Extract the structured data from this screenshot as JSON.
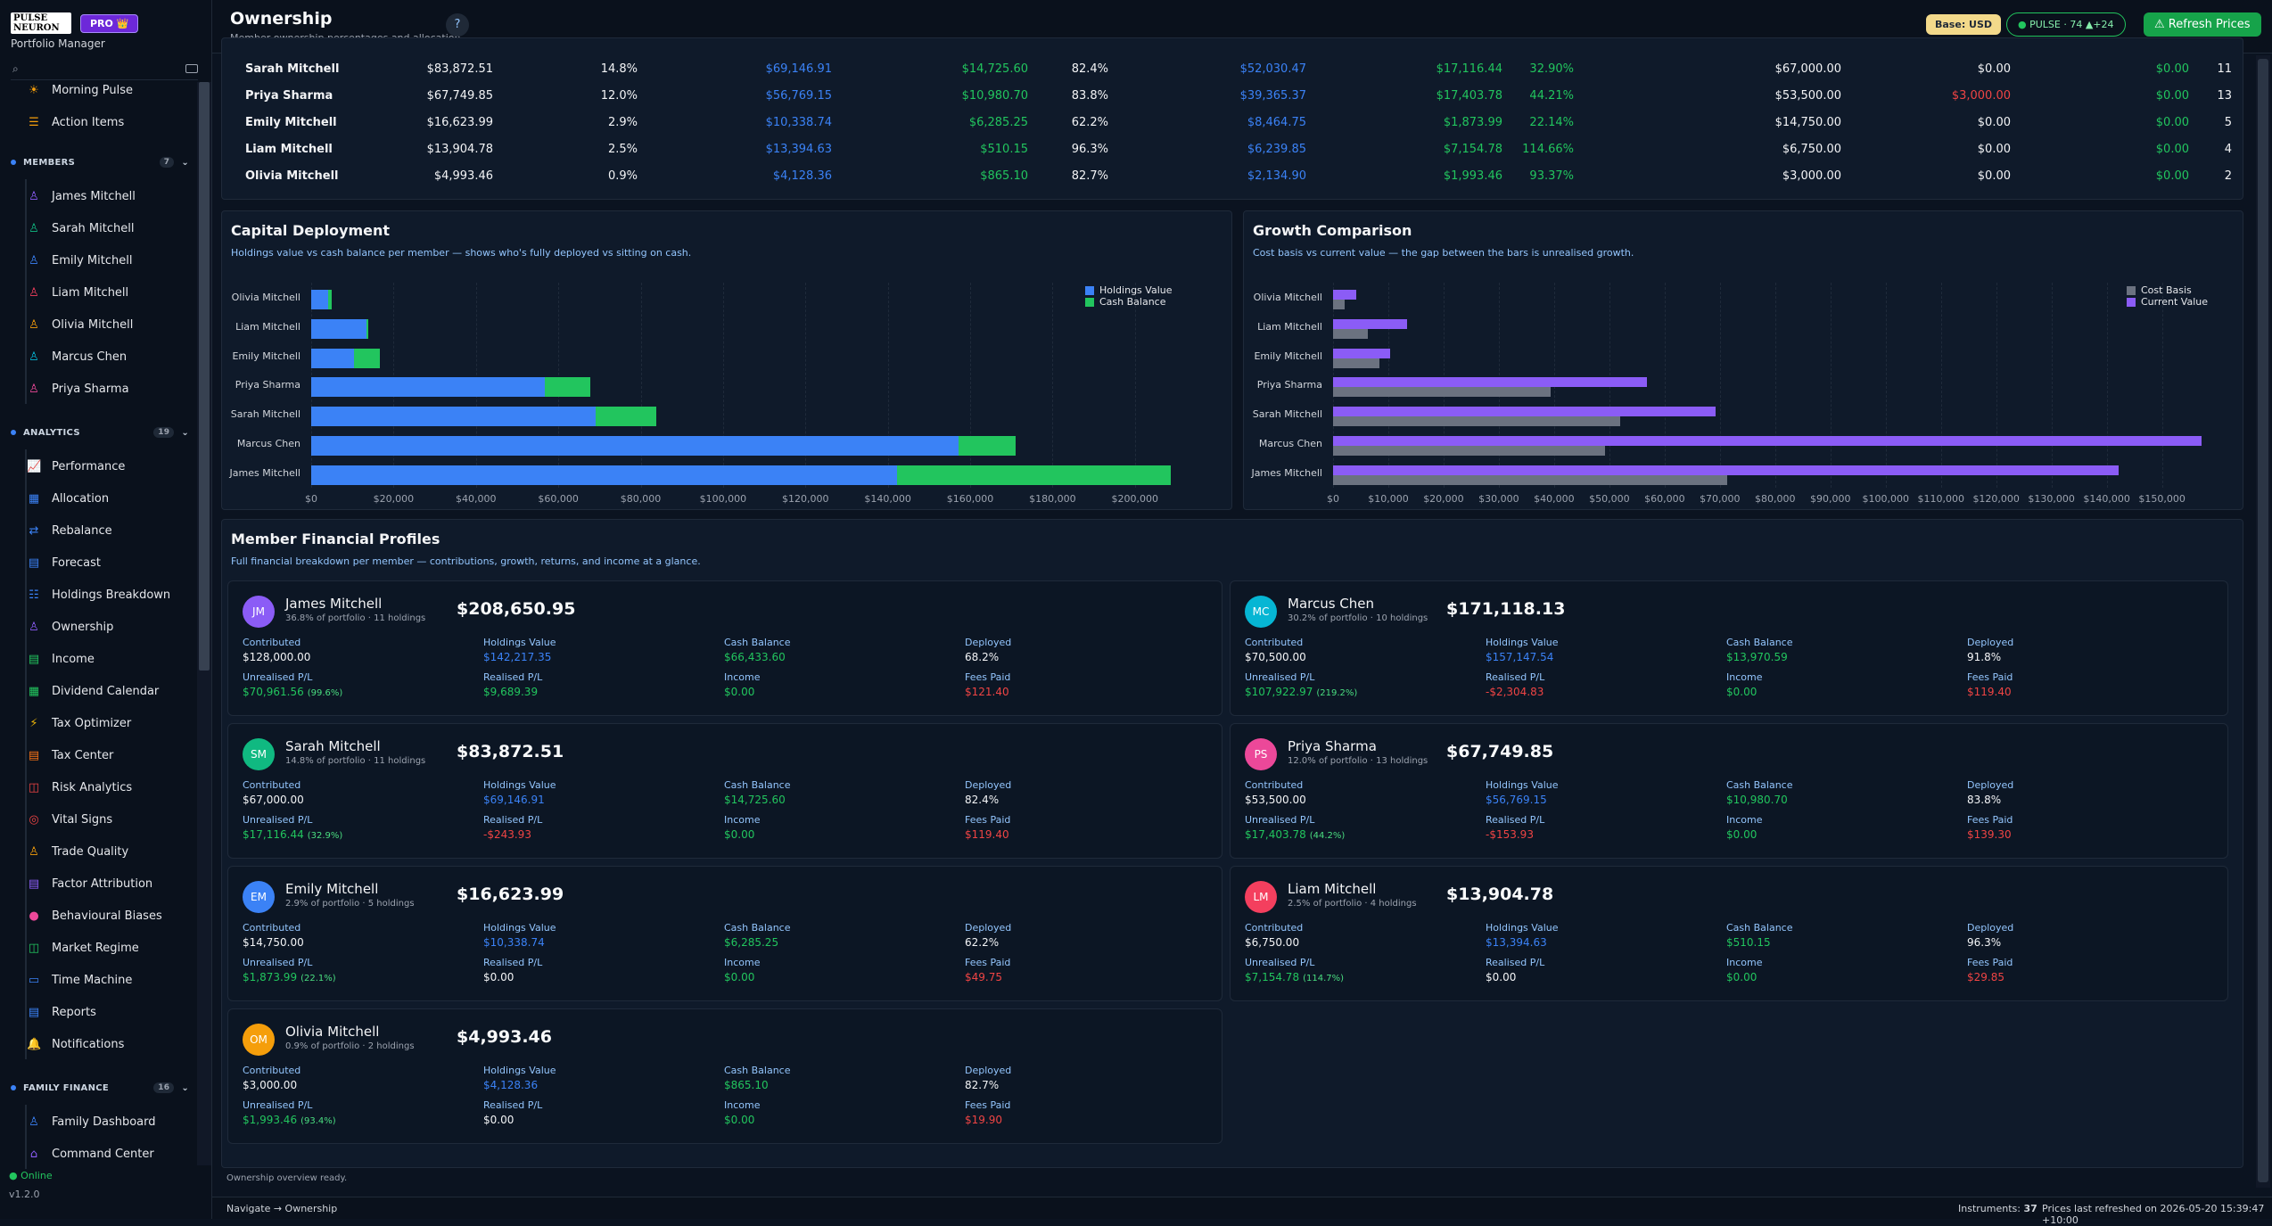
{
  "brand": {
    "logo_text": "PULSE NEURON",
    "pro_label": "PRO 👑",
    "subtitle": "Portfolio Manager"
  },
  "sidebar": {
    "top_items": [
      {
        "label": "Morning Pulse",
        "icon": "sun-icon"
      },
      {
        "label": "Action Items",
        "icon": "list-icon"
      }
    ],
    "members": {
      "title": "MEMBERS",
      "count": "7",
      "items": [
        "James Mitchell",
        "Sarah Mitchell",
        "Emily Mitchell",
        "Liam Mitchell",
        "Olivia Mitchell",
        "Marcus Chen",
        "Priya Sharma"
      ]
    },
    "analytics": {
      "title": "ANALYTICS",
      "count": "19",
      "items": [
        "Performance",
        "Allocation",
        "Rebalance",
        "Forecast",
        "Holdings Breakdown",
        "Ownership",
        "Income",
        "Dividend Calendar",
        "Tax Optimizer",
        "Tax Center",
        "Risk Analytics",
        "Vital Signs",
        "Trade Quality",
        "Factor Attribution",
        "Behavioural Biases",
        "Market Regime",
        "Time Machine",
        "Reports",
        "Notifications"
      ]
    },
    "family": {
      "title": "FAMILY FINANCE",
      "count": "16",
      "items": [
        "Family Dashboard",
        "Command Center"
      ]
    },
    "status": "Online",
    "version": "v1.2.0"
  },
  "header": {
    "title": "Ownership",
    "subtitle": "Member ownership percentages and allocation",
    "help": "?",
    "base": "Base: USD",
    "pulse": "PULSE · 74  ▲+24",
    "refresh": "Refresh Prices"
  },
  "table": {
    "rows": [
      [
        "Sarah Mitchell",
        "$83,872.51",
        "14.8%",
        "$69,146.91",
        "$14,725.60",
        "82.4%",
        "$52,030.47",
        "$17,116.44",
        "32.90%",
        "$67,000.00",
        "$0.00",
        "$0.00",
        "11"
      ],
      [
        "Priya Sharma",
        "$67,749.85",
        "12.0%",
        "$56,769.15",
        "$10,980.70",
        "83.8%",
        "$39,365.37",
        "$17,403.78",
        "44.21%",
        "$53,500.00",
        "$3,000.00",
        "$0.00",
        "13"
      ],
      [
        "Emily Mitchell",
        "$16,623.99",
        "2.9%",
        "$10,338.74",
        "$6,285.25",
        "62.2%",
        "$8,464.75",
        "$1,873.99",
        "22.14%",
        "$14,750.00",
        "$0.00",
        "$0.00",
        "5"
      ],
      [
        "Liam Mitchell",
        "$13,904.78",
        "2.5%",
        "$13,394.63",
        "$510.15",
        "96.3%",
        "$6,239.85",
        "$7,154.78",
        "114.66%",
        "$6,750.00",
        "$0.00",
        "$0.00",
        "4"
      ],
      [
        "Olivia Mitchell",
        "$4,993.46",
        "0.9%",
        "$4,128.36",
        "$865.10",
        "82.7%",
        "$2,134.90",
        "$1,993.46",
        "93.37%",
        "$3,000.00",
        "$0.00",
        "$0.00",
        "2"
      ]
    ]
  },
  "capital": {
    "title": "Capital Deployment",
    "subtitle": "Holdings value vs cash balance per member — shows who's fully deployed vs sitting on cash.",
    "legend": [
      "Holdings Value",
      "Cash Balance"
    ]
  },
  "growth": {
    "title": "Growth Comparison",
    "subtitle": "Cost basis vs current value — the gap between the bars is unrealised growth.",
    "legend": [
      "Cost Basis",
      "Current Value"
    ]
  },
  "chart_data": [
    {
      "type": "bar",
      "orientation": "horizontal",
      "stacked": true,
      "title": "Capital Deployment",
      "categories": [
        "Olivia Mitchell",
        "Liam Mitchell",
        "Emily Mitchell",
        "Priya Sharma",
        "Sarah Mitchell",
        "Marcus Chen",
        "James Mitchell"
      ],
      "series": [
        {
          "name": "Holdings Value",
          "color": "#3b82f6",
          "values": [
            4128.36,
            13394.63,
            10338.74,
            56769.15,
            69146.91,
            157147.54,
            142217.35
          ]
        },
        {
          "name": "Cash Balance",
          "color": "#22c55e",
          "values": [
            865.1,
            510.15,
            6285.25,
            10980.7,
            14725.6,
            13970.59,
            66433.6
          ]
        }
      ],
      "xlim": [
        0,
        210000
      ],
      "ticks": [
        "$0",
        "$20,000",
        "$40,000",
        "$60,000",
        "$80,000",
        "$100,000",
        "$120,000",
        "$140,000",
        "$160,000",
        "$180,000",
        "$200,000"
      ],
      "legend_position": "top-right"
    },
    {
      "type": "bar",
      "orientation": "horizontal",
      "stacked": false,
      "title": "Growth Comparison",
      "categories": [
        "Olivia Mitchell",
        "Liam Mitchell",
        "Emily Mitchell",
        "Priya Sharma",
        "Sarah Mitchell",
        "Marcus Chen",
        "James Mitchell"
      ],
      "series": [
        {
          "name": "Cost Basis",
          "color": "#6b7280",
          "values": [
            2134.9,
            6239.85,
            8464.75,
            39365.37,
            52030.47,
            49224.57,
            71255.79
          ]
        },
        {
          "name": "Current Value",
          "color": "#8b5cf6",
          "values": [
            4128.36,
            13394.63,
            10338.74,
            56769.15,
            69146.91,
            157147.54,
            142217.35
          ]
        }
      ],
      "xlim": [
        0,
        157000
      ],
      "ticks": [
        "$0",
        "$10,000",
        "$20,000",
        "$30,000",
        "$40,000",
        "$50,000",
        "$60,000",
        "$70,000",
        "$80,000",
        "$90,000",
        "$100,000",
        "$110,000",
        "$120,000",
        "$130,000",
        "$140,000",
        "$150,000"
      ],
      "legend_position": "top-right"
    }
  ],
  "profiles_section": {
    "title": "Member Financial Profiles",
    "subtitle": "Full financial breakdown per member — contributions, growth, returns, and income at a glance."
  },
  "profiles": [
    {
      "initials": "JM",
      "color": "#8b5cf6",
      "name": "James Mitchell",
      "meta": "36.8% of portfolio · 11 holdings",
      "total": "$208,650.95",
      "contributed": "$128,000.00",
      "holdings": "$142,217.35",
      "cash": "$66,433.60",
      "deployed": "68.2%",
      "unreal": "$70,961.56",
      "unreal_pct": "(99.6%)",
      "real": "$9,689.39",
      "real_cls": "g",
      "income": "$0.00",
      "fees": "$121.40"
    },
    {
      "initials": "MC",
      "color": "#06b6d4",
      "name": "Marcus Chen",
      "meta": "30.2% of portfolio · 10 holdings",
      "total": "$171,118.13",
      "contributed": "$70,500.00",
      "holdings": "$157,147.54",
      "cash": "$13,970.59",
      "deployed": "91.8%",
      "unreal": "$107,922.97",
      "unreal_pct": "(219.2%)",
      "real": "-$2,304.83",
      "real_cls": "r",
      "income": "$0.00",
      "fees": "$119.40"
    },
    {
      "initials": "SM",
      "color": "#10b981",
      "name": "Sarah Mitchell",
      "meta": "14.8% of portfolio · 11 holdings",
      "total": "$83,872.51",
      "contributed": "$67,000.00",
      "holdings": "$69,146.91",
      "cash": "$14,725.60",
      "deployed": "82.4%",
      "unreal": "$17,116.44",
      "unreal_pct": "(32.9%)",
      "real": "-$243.93",
      "real_cls": "r",
      "income": "$0.00",
      "fees": "$119.40"
    },
    {
      "initials": "PS",
      "color": "#ec4899",
      "name": "Priya Sharma",
      "meta": "12.0% of portfolio · 13 holdings",
      "total": "$67,749.85",
      "contributed": "$53,500.00",
      "holdings": "$56,769.15",
      "cash": "$10,980.70",
      "deployed": "83.8%",
      "unreal": "$17,403.78",
      "unreal_pct": "(44.2%)",
      "real": "-$153.93",
      "real_cls": "r",
      "income": "$0.00",
      "fees": "$139.30"
    },
    {
      "initials": "EM",
      "color": "#3b82f6",
      "name": "Emily Mitchell",
      "meta": "2.9% of portfolio · 5 holdings",
      "total": "$16,623.99",
      "contributed": "$14,750.00",
      "holdings": "$10,338.74",
      "cash": "$6,285.25",
      "deployed": "62.2%",
      "unreal": "$1,873.99",
      "unreal_pct": "(22.1%)",
      "real": "$0.00",
      "real_cls": "w",
      "income": "$0.00",
      "fees": "$49.75"
    },
    {
      "initials": "LM",
      "color": "#f43f5e",
      "name": "Liam Mitchell",
      "meta": "2.5% of portfolio · 4 holdings",
      "total": "$13,904.78",
      "contributed": "$6,750.00",
      "holdings": "$13,394.63",
      "cash": "$510.15",
      "deployed": "96.3%",
      "unreal": "$7,154.78",
      "unreal_pct": "(114.7%)",
      "real": "$0.00",
      "real_cls": "w",
      "income": "$0.00",
      "fees": "$29.85"
    },
    {
      "initials": "OM",
      "color": "#f59e0b",
      "name": "Olivia Mitchell",
      "meta": "0.9% of portfolio · 2 holdings",
      "total": "$4,993.46",
      "contributed": "$3,000.00",
      "holdings": "$4,128.36",
      "cash": "$865.10",
      "deployed": "82.7%",
      "unreal": "$1,993.46",
      "unreal_pct": "(93.4%)",
      "real": "$0.00",
      "real_cls": "w",
      "income": "$0.00",
      "fees": "$19.90"
    }
  ],
  "profile_labels": {
    "contributed": "Contributed",
    "holdings": "Holdings Value",
    "cash": "Cash Balance",
    "deployed": "Deployed",
    "unreal": "Unrealised P/L",
    "real": "Realised P/L",
    "income": "Income",
    "fees": "Fees Paid"
  },
  "status": "Ownership overview ready.",
  "footer": {
    "nav": "Navigate → Ownership",
    "instruments_label": "Instruments:",
    "instruments": "37",
    "refreshed": "Prices last refreshed on 2026-05-20 15:39:47 +10:00"
  }
}
